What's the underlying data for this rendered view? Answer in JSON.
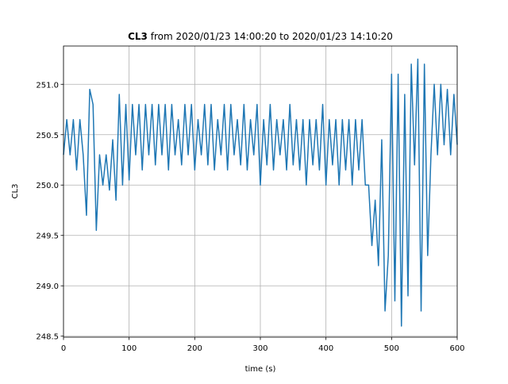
{
  "chart_data": {
    "type": "line",
    "title_bold": "CL3",
    "title": "from 2020/01/23 14:00:20 to 2020/01/23 14:10:20",
    "xlabel": "time (s)",
    "ylabel": "CL3",
    "xlim": [
      0,
      600
    ],
    "ylim": [
      248.49,
      251.38
    ],
    "xticks": [
      0,
      100,
      200,
      300,
      400,
      500,
      600
    ],
    "yticks": [
      248.5,
      {
        "value": 249,
        "label": "249.0"
      },
      249.5,
      {
        "value": 250,
        "label": "250.0"
      },
      250.5,
      {
        "value": 251,
        "label": "251.0"
      }
    ],
    "grid": true,
    "x": [
      0,
      5,
      10,
      15,
      20,
      25,
      30,
      35,
      40,
      45,
      50,
      55,
      60,
      65,
      70,
      75,
      80,
      85,
      90,
      95,
      100,
      105,
      110,
      115,
      120,
      125,
      130,
      135,
      140,
      145,
      150,
      155,
      160,
      165,
      170,
      175,
      180,
      185,
      190,
      195,
      200,
      205,
      210,
      215,
      220,
      225,
      230,
      235,
      240,
      245,
      250,
      255,
      260,
      265,
      270,
      275,
      280,
      285,
      290,
      295,
      300,
      305,
      310,
      315,
      320,
      325,
      330,
      335,
      340,
      345,
      350,
      355,
      360,
      365,
      370,
      375,
      380,
      385,
      390,
      395,
      400,
      405,
      410,
      415,
      420,
      425,
      430,
      435,
      440,
      445,
      450,
      455,
      460,
      465,
      470,
      475,
      480,
      485,
      490,
      495,
      500,
      505,
      510,
      515,
      520,
      525,
      530,
      535,
      540,
      545,
      550,
      555,
      560,
      565,
      570,
      575,
      580,
      585,
      590,
      595,
      600
    ],
    "series": [
      {
        "name": "CL3",
        "color": "#1f77b4",
        "values": [
          250.3,
          250.65,
          250.3,
          250.65,
          250.15,
          250.65,
          250.3,
          249.7,
          250.95,
          250.8,
          249.55,
          250.3,
          250.0,
          250.3,
          249.95,
          250.45,
          249.85,
          250.9,
          250.0,
          250.8,
          250.05,
          250.8,
          250.3,
          250.8,
          250.15,
          250.8,
          250.3,
          250.8,
          250.2,
          250.8,
          250.3,
          250.8,
          250.15,
          250.8,
          250.3,
          250.65,
          250.2,
          250.8,
          250.3,
          250.8,
          250.15,
          250.65,
          250.3,
          250.8,
          250.2,
          250.8,
          250.15,
          250.65,
          250.3,
          250.8,
          250.15,
          250.8,
          250.3,
          250.65,
          250.2,
          250.8,
          250.15,
          250.65,
          250.3,
          250.8,
          250.0,
          250.65,
          250.2,
          250.8,
          250.15,
          250.65,
          250.3,
          250.65,
          250.15,
          250.8,
          250.2,
          250.65,
          250.15,
          250.65,
          250.0,
          250.65,
          250.2,
          250.65,
          250.15,
          250.8,
          250.0,
          250.65,
          250.2,
          250.65,
          250.0,
          250.65,
          250.15,
          250.65,
          250.0,
          250.65,
          250.15,
          250.65,
          250.0,
          250.0,
          249.4,
          249.85,
          249.2,
          250.45,
          248.75,
          249.3,
          251.1,
          248.85,
          251.1,
          248.6,
          250.9,
          248.9,
          251.2,
          250.2,
          251.25,
          248.75,
          251.2,
          249.3,
          250.3,
          251.0,
          250.3,
          251.0,
          250.4,
          250.95,
          250.3,
          250.9,
          250.4
        ]
      }
    ]
  }
}
